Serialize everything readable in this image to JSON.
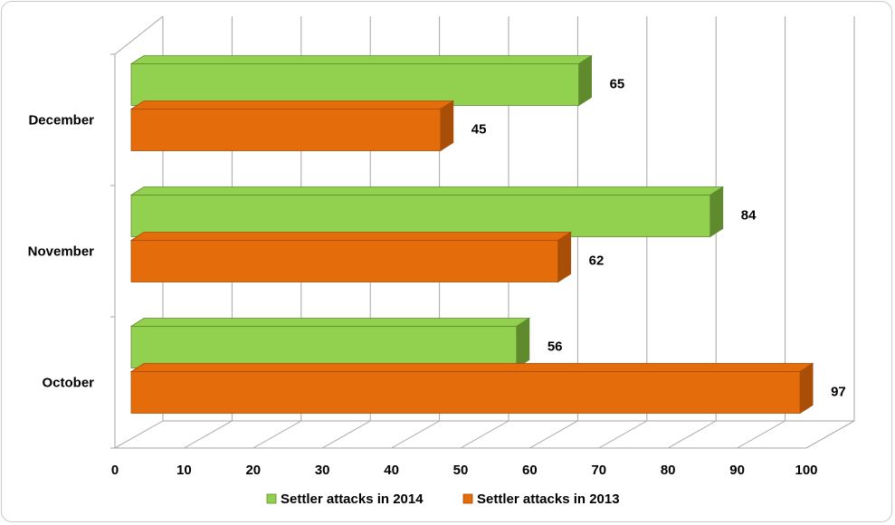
{
  "chart_data": {
    "type": "bar",
    "orientation": "horizontal",
    "three_d": true,
    "categories": [
      "October",
      "November",
      "December"
    ],
    "series": [
      {
        "name": "Settler attacks in 2014",
        "values": [
          56,
          84,
          65
        ],
        "color": "#92d050",
        "side_color": "#5f8a2e"
      },
      {
        "name": "Settler attacks in 2013",
        "values": [
          97,
          62,
          45
        ],
        "color": "#e46c0a",
        "side_color": "#a84e06"
      }
    ],
    "xlim": [
      0,
      100
    ],
    "xticks": [
      0,
      10,
      20,
      30,
      40,
      50,
      60,
      70,
      80,
      90,
      100
    ],
    "grid": true,
    "legend_position": "bottom"
  }
}
